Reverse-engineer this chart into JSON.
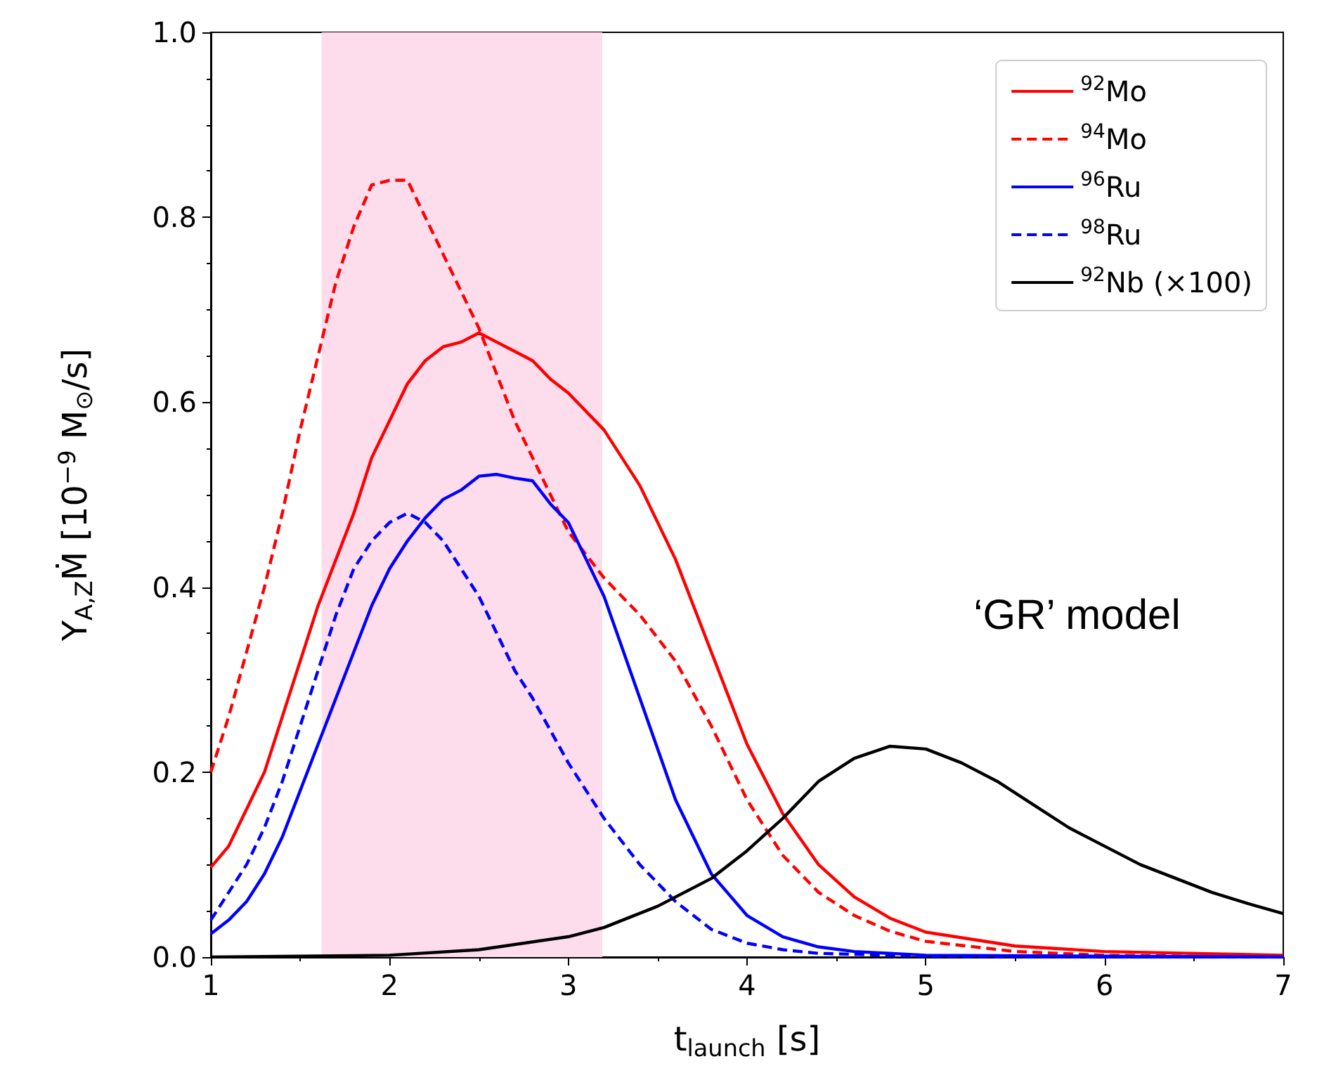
{
  "chart_data": {
    "type": "line",
    "xlabel": "t$_{launch}$ [s]",
    "ylabel": "Y$_{A,Z}$Ṁ [10$^{−9}$ M$_{⊙}$/s]",
    "xlim": [
      1,
      7
    ],
    "xticks": [
      1,
      2,
      3,
      4,
      5,
      6,
      7
    ],
    "ylim": [
      0,
      1.0
    ],
    "yticks": [
      {
        "value": 0,
        "label": "0.0"
      },
      0.2,
      0.4,
      0.6,
      0.8,
      {
        "value": 1,
        "label": "1.0"
      }
    ],
    "grid": false,
    "legend": "top right",
    "marker": "none",
    "annotations": [
      "‘GR’ model"
    ],
    "bands": [
      {
        "axis": "x",
        "from": 1.62,
        "to": 3.19,
        "color": "#fddcec"
      }
    ],
    "series": [
      {
        "name": "$^{92}$Mo",
        "color": "#ff0000",
        "line_style": "solid",
        "x": [
          1.0,
          1.1,
          1.2,
          1.3,
          1.4,
          1.5,
          1.6,
          1.8,
          1.9,
          2.0,
          2.1,
          2.2,
          2.3,
          2.4,
          2.5,
          2.6,
          2.7,
          2.8,
          2.9,
          3.0,
          3.2,
          3.4,
          3.6,
          3.8,
          4.0,
          4.2,
          4.4,
          4.6,
          4.8,
          5.0,
          5.5,
          6.0,
          7.0
        ],
        "values": [
          0.097,
          0.12,
          0.16,
          0.2,
          0.26,
          0.32,
          0.38,
          0.48,
          0.54,
          0.58,
          0.62,
          0.645,
          0.66,
          0.665,
          0.675,
          0.665,
          0.655,
          0.645,
          0.625,
          0.61,
          0.57,
          0.51,
          0.43,
          0.33,
          0.23,
          0.155,
          0.1,
          0.065,
          0.042,
          0.027,
          0.012,
          0.006,
          0.002
        ]
      },
      {
        "name": "$^{94}$Mo",
        "color": "#ff0000",
        "line_style": "dashed",
        "x": [
          1.0,
          1.1,
          1.2,
          1.3,
          1.4,
          1.5,
          1.6,
          1.7,
          1.8,
          1.9,
          2.0,
          2.1,
          2.2,
          2.3,
          2.4,
          2.5,
          2.6,
          2.7,
          2.8,
          2.9,
          3.0,
          3.2,
          3.4,
          3.6,
          3.8,
          4.0,
          4.2,
          4.4,
          4.6,
          4.8,
          5.0,
          5.5,
          6.0,
          7.0
        ],
        "values": [
          0.2,
          0.26,
          0.33,
          0.4,
          0.48,
          0.57,
          0.65,
          0.73,
          0.79,
          0.835,
          0.84,
          0.84,
          0.8,
          0.76,
          0.72,
          0.68,
          0.63,
          0.58,
          0.54,
          0.5,
          0.46,
          0.41,
          0.37,
          0.32,
          0.25,
          0.17,
          0.11,
          0.07,
          0.045,
          0.028,
          0.017,
          0.006,
          0.002,
          0.0
        ]
      },
      {
        "name": "$^{96}$Ru",
        "color": "#0000ff",
        "line_style": "solid",
        "x": [
          1.0,
          1.1,
          1.2,
          1.3,
          1.4,
          1.5,
          1.6,
          1.7,
          1.8,
          1.9,
          2.0,
          2.1,
          2.2,
          2.3,
          2.4,
          2.5,
          2.6,
          2.7,
          2.8,
          2.9,
          3.0,
          3.1,
          3.2,
          3.4,
          3.6,
          3.8,
          4.0,
          4.2,
          4.4,
          4.6,
          5.0,
          6.0,
          7.0
        ],
        "values": [
          0.025,
          0.04,
          0.06,
          0.09,
          0.13,
          0.18,
          0.23,
          0.28,
          0.33,
          0.38,
          0.42,
          0.45,
          0.475,
          0.495,
          0.505,
          0.52,
          0.522,
          0.518,
          0.515,
          0.49,
          0.47,
          0.43,
          0.39,
          0.28,
          0.17,
          0.09,
          0.045,
          0.022,
          0.011,
          0.006,
          0.002,
          0.001,
          0.0
        ]
      },
      {
        "name": "$^{98}$Ru",
        "color": "#0000ff",
        "line_style": "dashed",
        "x": [
          1.0,
          1.1,
          1.2,
          1.3,
          1.4,
          1.5,
          1.6,
          1.7,
          1.8,
          1.9,
          2.0,
          2.1,
          2.2,
          2.3,
          2.4,
          2.5,
          2.6,
          2.7,
          2.8,
          2.9,
          3.0,
          3.2,
          3.4,
          3.6,
          3.8,
          4.0,
          4.2,
          4.4,
          5.0,
          6.0,
          7.0
        ],
        "values": [
          0.04,
          0.07,
          0.1,
          0.14,
          0.19,
          0.25,
          0.31,
          0.37,
          0.42,
          0.45,
          0.47,
          0.48,
          0.47,
          0.45,
          0.42,
          0.39,
          0.35,
          0.31,
          0.28,
          0.245,
          0.21,
          0.15,
          0.1,
          0.06,
          0.03,
          0.015,
          0.008,
          0.004,
          0.001,
          0.0,
          0.0
        ]
      },
      {
        "name": "$^{92}$Nb (×100)",
        "color": "#000000",
        "line_style": "solid",
        "x": [
          1.0,
          1.5,
          2.0,
          2.5,
          3.0,
          3.2,
          3.5,
          3.8,
          4.0,
          4.2,
          4.4,
          4.6,
          4.8,
          5.0,
          5.2,
          5.4,
          5.6,
          5.8,
          6.0,
          6.2,
          6.4,
          6.6,
          6.8,
          7.0
        ],
        "values": [
          0.0,
          0.001,
          0.002,
          0.008,
          0.022,
          0.032,
          0.055,
          0.085,
          0.115,
          0.15,
          0.19,
          0.215,
          0.228,
          0.225,
          0.21,
          0.19,
          0.165,
          0.14,
          0.12,
          0.1,
          0.085,
          0.07,
          0.058,
          0.047
        ]
      }
    ]
  }
}
